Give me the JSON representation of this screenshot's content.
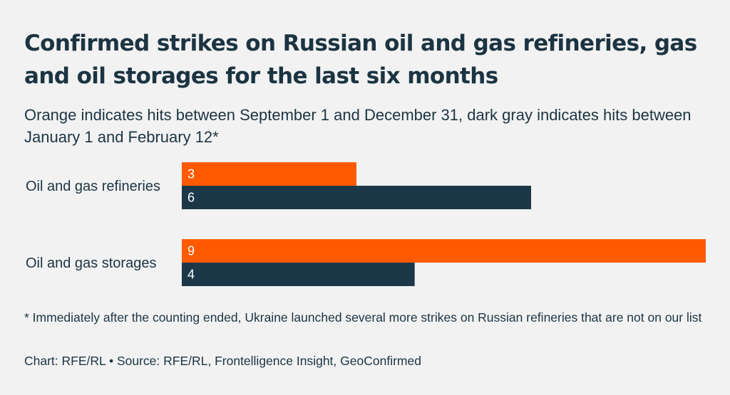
{
  "title": "Confirmed strikes on Russian oil and gas refineries, gas and oil storages for the last six months",
  "subtitle": "Orange indicates hits between September 1 and December 31, dark gray indicates hits between January 1 and February 12*",
  "footnote": "* Immediately after the counting ended, Ukraine launched several more strikes on Russian refineries that are not on our list",
  "source": "Chart: RFE/RL • Source: RFE/RL, Frontelligence Insight, GeoConfirmed",
  "colors": {
    "background": "#f2f2f2",
    "text": "#1c3442",
    "series_orange": "#ff5a00",
    "series_dark": "#1c3848"
  },
  "chart_data": {
    "type": "bar",
    "orientation": "horizontal",
    "title": "Confirmed strikes on Russian oil and gas refineries, gas and oil storages for the last six months",
    "subtitle": "Orange indicates hits between September 1 and December 31, dark gray indicates hits between January 1 and February 12*",
    "categories": [
      "Oil and gas refineries",
      "Oil and gas storages"
    ],
    "series": [
      {
        "color": "#ff5a00",
        "values": [
          3,
          9
        ]
      },
      {
        "color": "#1c3848",
        "values": [
          6,
          4
        ]
      }
    ],
    "xlim": [
      0,
      9
    ],
    "grid": false,
    "legend": "none",
    "xlabel": "",
    "ylabel": ""
  }
}
